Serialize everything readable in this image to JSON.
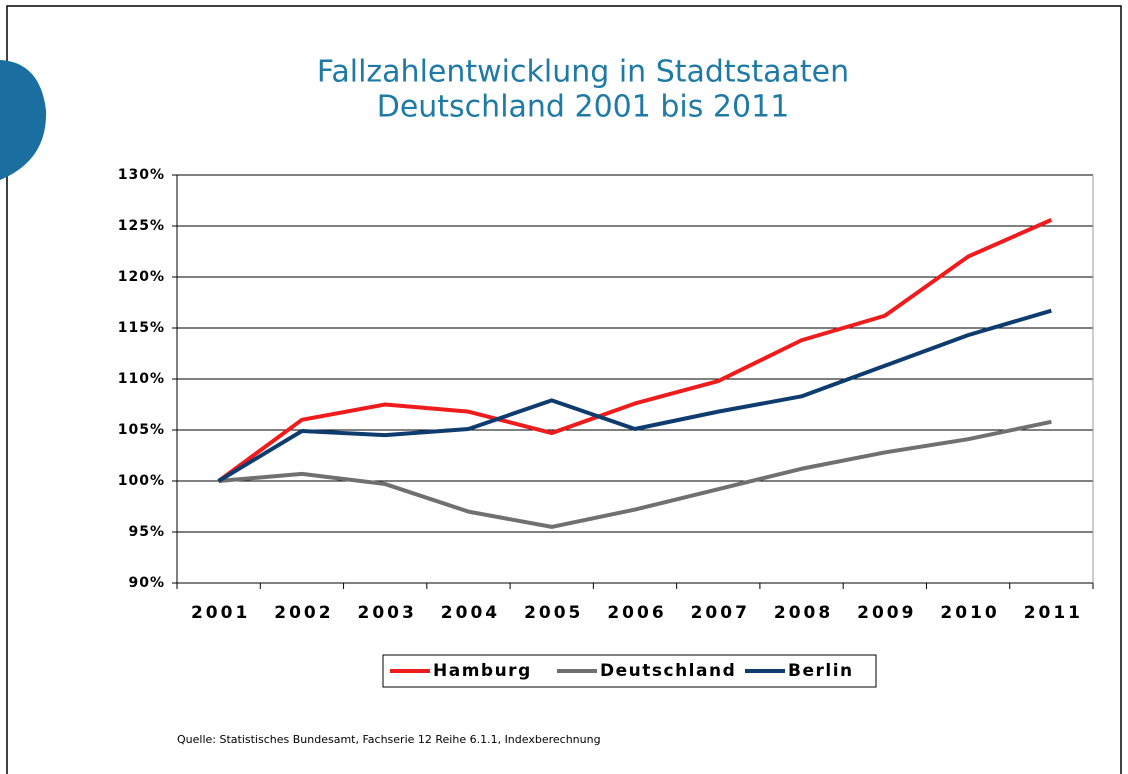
{
  "chart_data": {
    "type": "line",
    "title": "Fallzahlentwicklung in Stadtstaaten",
    "subtitle": "Deutschland 2001 bis 2011",
    "categories": [
      "2001",
      "2002",
      "2003",
      "2004",
      "2005",
      "2006",
      "2007",
      "2008",
      "2009",
      "2010",
      "2011"
    ],
    "series": [
      {
        "name": "Hamburg",
        "color": "#ee1c1c",
        "values": [
          100,
          106.0,
          107.5,
          106.8,
          104.7,
          107.6,
          109.8,
          113.8,
          116.2,
          122.0,
          125.6
        ]
      },
      {
        "name": "Deutschland",
        "color": "#707070",
        "values": [
          100,
          100.7,
          99.7,
          97.0,
          95.5,
          97.2,
          99.2,
          101.2,
          102.8,
          104.1,
          105.8
        ]
      },
      {
        "name": "Berlin",
        "color": "#0f3c6e",
        "values": [
          100,
          104.9,
          104.5,
          105.1,
          107.9,
          105.1,
          106.8,
          108.3,
          111.3,
          114.3,
          116.7
        ]
      }
    ],
    "ylim": [
      90,
      130
    ],
    "yticks": [
      {
        "value": 90,
        "label": "90%"
      },
      {
        "value": 95,
        "label": "95%"
      },
      {
        "value": 100,
        "label": "100%"
      },
      {
        "value": 105,
        "label": "105%"
      },
      {
        "value": 110,
        "label": "110%"
      },
      {
        "value": 115,
        "label": "115%"
      },
      {
        "value": 120,
        "label": "120%"
      },
      {
        "value": 125,
        "label": "125%"
      },
      {
        "value": 130,
        "label": "130%"
      }
    ],
    "grid": true,
    "legend": "bottom",
    "source": "Quelle: Statistisches Bundesamt, Fachserie 12 Reihe 6.1.1, Indexberechnung"
  }
}
